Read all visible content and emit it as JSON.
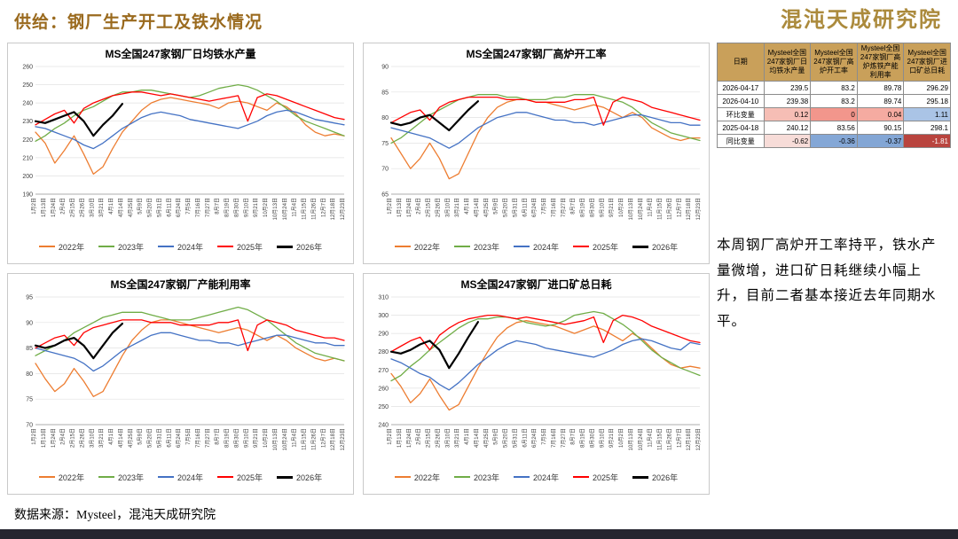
{
  "header": {
    "title": "供给：钢厂生产开工及铁水情况",
    "logo": "混沌天成研究院"
  },
  "footer": {
    "source": "数据来源：Mysteel，混沌天成研究院"
  },
  "note": "本周钢厂高炉开工率持平，铁水产量微增，进口矿日耗继续小幅上升，目前二者基本接近去年同期水平。",
  "colors": {
    "accent": "#9a6a1e",
    "table_header_bg": "#c9a05a",
    "bottom_bar": "#25252f"
  },
  "table": {
    "columns": [
      "日期",
      "Mysteel全国247家钢厂日均铁水产量",
      "Mysteel全国247家钢厂高炉开工率",
      "Mysteel全国247家钢厂高炉炼铁产能利用率",
      "Mysteel全国247家钢厂进口矿总日耗"
    ],
    "rows": [
      {
        "cells": [
          {
            "text": "2026-04-17"
          },
          {
            "text": "239.5"
          },
          {
            "text": "83.2"
          },
          {
            "text": "89.78"
          },
          {
            "text": "296.29"
          }
        ]
      },
      {
        "cells": [
          {
            "text": "2026-04-10"
          },
          {
            "text": "239.38"
          },
          {
            "text": "83.2"
          },
          {
            "text": "89.74"
          },
          {
            "text": "295.18"
          }
        ]
      },
      {
        "cells": [
          {
            "text": "环比变量"
          },
          {
            "text": "0.12",
            "bg": "#f6beb5"
          },
          {
            "text": "0",
            "bg": "#f2968c"
          },
          {
            "text": "0.04",
            "bg": "#f5aba1"
          },
          {
            "text": "1.11",
            "bg": "#aac4e6"
          }
        ]
      },
      {
        "cells": [
          {
            "text": "2025-04-18"
          },
          {
            "text": "240.12"
          },
          {
            "text": "83.56"
          },
          {
            "text": "90.15"
          },
          {
            "text": "298.1"
          }
        ]
      },
      {
        "cells": [
          {
            "text": "同比变量"
          },
          {
            "text": "-0.62",
            "bg": "#f7dcd8"
          },
          {
            "text": "-0.36",
            "bg": "#84a7d6"
          },
          {
            "text": "-0.37",
            "bg": "#83a6d5"
          },
          {
            "text": "-1.81",
            "bg": "#b9443e",
            "fg": "#ffffff"
          }
        ]
      }
    ]
  },
  "chart_data": [
    {
      "type": "line",
      "title": "MS全国247家钢厂日均铁水产量",
      "ylim": [
        190,
        260
      ],
      "ytick_step": 10,
      "grid": true,
      "legend_position": "bottom",
      "categories": [
        "1月2日",
        "1月13日",
        "1月24日",
        "2月4日",
        "2月15日",
        "2月26日",
        "3月10日",
        "3月21日",
        "4月1日",
        "4月14日",
        "4月25日",
        "5月9日",
        "5月20日",
        "5月31日",
        "6月11日",
        "6月24日",
        "7月5日",
        "7月16日",
        "7月27日",
        "8月7日",
        "8月19日",
        "8月30日",
        "9月10日",
        "9月21日",
        "10月2日",
        "10月13日",
        "10月24日",
        "11月4日",
        "11月15日",
        "11月26日",
        "12月7日",
        "12月18日",
        "12月23日"
      ],
      "series": [
        {
          "name": "2022年",
          "color": "#ED7D31",
          "width": 1.3,
          "values": [
            224,
            218,
            207,
            214,
            222,
            212,
            201,
            205,
            215,
            224,
            230,
            236,
            240,
            242,
            243,
            242,
            241,
            240,
            239,
            237,
            240,
            241,
            240,
            238,
            236,
            240,
            238,
            234,
            228,
            224,
            222,
            223,
            222
          ]
        },
        {
          "name": "2023年",
          "color": "#70AD47",
          "width": 1.3,
          "values": [
            219,
            222,
            226,
            229,
            233,
            236,
            238,
            241,
            244,
            246,
            246,
            247,
            247,
            246,
            245,
            244,
            243,
            244,
            246,
            248,
            249,
            250,
            249,
            247,
            244,
            241,
            237,
            233,
            230,
            228,
            226,
            224,
            222
          ]
        },
        {
          "name": "2024年",
          "color": "#4472C4",
          "width": 1.3,
          "values": [
            227,
            226,
            224,
            222,
            220,
            217,
            215,
            218,
            222,
            226,
            229,
            232,
            234,
            235,
            234,
            233,
            231,
            230,
            229,
            228,
            227,
            226,
            228,
            230,
            233,
            235,
            236,
            235,
            233,
            231,
            230,
            229,
            228
          ]
        },
        {
          "name": "2025年",
          "color": "#FF0000",
          "width": 1.3,
          "values": [
            228,
            231,
            234,
            236,
            229,
            237,
            240,
            242,
            244,
            245,
            246,
            246,
            245,
            244,
            245,
            244,
            243,
            242,
            241,
            242,
            243,
            244,
            230,
            243,
            245,
            244,
            242,
            240,
            238,
            236,
            234,
            232,
            231
          ]
        },
        {
          "name": "2026年",
          "color": "#000000",
          "width": 2.2,
          "values": [
            230,
            229,
            231,
            233,
            235,
            230,
            222,
            228,
            233,
            239.5,
            null,
            null,
            null,
            null,
            null,
            null,
            null,
            null,
            null,
            null,
            null,
            null,
            null,
            null,
            null,
            null,
            null,
            null,
            null,
            null,
            null,
            null,
            null
          ]
        }
      ]
    },
    {
      "type": "line",
      "title": "MS全国247家钢厂高炉开工率",
      "ylim": [
        65,
        90
      ],
      "ytick_step": 5,
      "grid": true,
      "legend_position": "bottom",
      "categories": [
        "1月2日",
        "1月13日",
        "1月24日",
        "2月4日",
        "2月15日",
        "2月26日",
        "3月10日",
        "3月21日",
        "4月1日",
        "4月14日",
        "4月25日",
        "5月9日",
        "5月20日",
        "5月31日",
        "6月11日",
        "6月24日",
        "7月5日",
        "7月16日",
        "7月27日",
        "8月7日",
        "8月19日",
        "8月30日",
        "9月10日",
        "9月21日",
        "10月2日",
        "10月13日",
        "10月24日",
        "11月4日",
        "11月15日",
        "11月26日",
        "12月7日",
        "12月18日",
        "12月23日"
      ],
      "series": [
        {
          "name": "2022年",
          "color": "#ED7D31",
          "width": 1.3,
          "values": [
            76,
            73,
            70,
            72,
            75,
            72,
            68,
            69,
            73,
            77,
            80,
            82,
            83,
            83.5,
            83.5,
            83,
            83,
            82.5,
            82,
            81.5,
            82,
            82.5,
            82,
            81,
            80,
            81,
            80,
            78,
            77,
            76,
            75.5,
            76,
            76
          ]
        },
        {
          "name": "2023年",
          "color": "#70AD47",
          "width": 1.3,
          "values": [
            75,
            76,
            77.5,
            79,
            80.5,
            81.5,
            82.5,
            83.5,
            84,
            84.5,
            84.5,
            84.5,
            84,
            84,
            83.5,
            83.5,
            83.5,
            84,
            84,
            84.5,
            84.5,
            84.5,
            84,
            83.5,
            83,
            82,
            80.5,
            79,
            78,
            77,
            76.5,
            76,
            75.5
          ]
        },
        {
          "name": "2024年",
          "color": "#4472C4",
          "width": 1.3,
          "values": [
            78,
            77.5,
            77,
            76.5,
            76,
            75,
            74,
            75,
            76.5,
            78,
            79,
            80,
            80.5,
            81,
            81,
            80.5,
            80,
            79.5,
            79.5,
            79,
            79,
            78.5,
            79,
            79.5,
            80,
            80.5,
            80.5,
            80,
            79.5,
            79,
            79,
            78.5,
            78.5
          ]
        },
        {
          "name": "2025年",
          "color": "#FF0000",
          "width": 1.3,
          "values": [
            79,
            80,
            81,
            81.5,
            79.5,
            82,
            83,
            83.5,
            84,
            84,
            84,
            84,
            83.5,
            83.5,
            83.5,
            83,
            83,
            83,
            83,
            83.5,
            83.5,
            84,
            78.5,
            83,
            84,
            83.5,
            83,
            82,
            81.5,
            81,
            80.5,
            80,
            79.5
          ]
        },
        {
          "name": "2026年",
          "color": "#000000",
          "width": 2.2,
          "values": [
            79,
            78.5,
            79,
            80,
            80.5,
            79,
            77.5,
            79.5,
            81.5,
            83.2,
            null,
            null,
            null,
            null,
            null,
            null,
            null,
            null,
            null,
            null,
            null,
            null,
            null,
            null,
            null,
            null,
            null,
            null,
            null,
            null,
            null,
            null,
            null
          ]
        }
      ]
    },
    {
      "type": "line",
      "title": "MS全国247家钢厂产能利用率",
      "ylim": [
        70,
        95
      ],
      "ytick_step": 5,
      "grid": true,
      "legend_position": "bottom",
      "categories": [
        "1月2日",
        "1月13日",
        "1月24日",
        "2月4日",
        "2月15日",
        "2月26日",
        "3月10日",
        "3月21日",
        "4月1日",
        "4月14日",
        "4月25日",
        "5月9日",
        "5月20日",
        "5月31日",
        "6月11日",
        "6月24日",
        "7月5日",
        "7月16日",
        "7月27日",
        "8月7日",
        "8月19日",
        "8月30日",
        "9月10日",
        "9月21日",
        "10月2日",
        "10月13日",
        "10月24日",
        "11月4日",
        "11月15日",
        "11月26日",
        "12月7日",
        "12月18日",
        "12月23日"
      ],
      "series": [
        {
          "name": "2022年",
          "color": "#ED7D31",
          "width": 1.3,
          "values": [
            82,
            79,
            76.5,
            78,
            81,
            78.5,
            75.5,
            76.5,
            80,
            83.5,
            86.5,
            88.5,
            90,
            90.5,
            90.5,
            90,
            89.5,
            89,
            88.5,
            88,
            88.5,
            89,
            88.5,
            87.5,
            86.5,
            87.5,
            86.5,
            85,
            84,
            83,
            82.5,
            83,
            82.5
          ]
        },
        {
          "name": "2023年",
          "color": "#70AD47",
          "width": 1.3,
          "values": [
            83.5,
            84.5,
            85.5,
            86.5,
            88,
            89,
            90,
            91,
            91.5,
            92,
            92,
            92,
            91.5,
            91,
            90.5,
            90.5,
            90.5,
            91,
            91.5,
            92,
            92.5,
            93,
            92.5,
            91.5,
            90.5,
            89,
            87.5,
            86,
            85,
            84,
            83.5,
            83,
            82.5
          ]
        },
        {
          "name": "2024年",
          "color": "#4472C4",
          "width": 1.3,
          "values": [
            85,
            84.5,
            84,
            83.5,
            83,
            82,
            80.5,
            81.5,
            83,
            84.5,
            85.5,
            86.5,
            87.5,
            88,
            88,
            87.5,
            87,
            86.5,
            86.5,
            86,
            86,
            85.5,
            86,
            86.5,
            87,
            87.5,
            87.5,
            87,
            86.5,
            86,
            86,
            85.5,
            85.5
          ]
        },
        {
          "name": "2025年",
          "color": "#FF0000",
          "width": 1.3,
          "values": [
            85,
            86,
            87,
            87.5,
            85.5,
            88,
            89,
            89.5,
            90,
            90.5,
            90.5,
            90.5,
            90,
            90,
            90,
            89.5,
            89.5,
            89.5,
            89.5,
            90,
            90,
            90.5,
            84.5,
            89.5,
            90.5,
            90,
            89.5,
            88.5,
            88,
            87.5,
            87,
            87,
            86.5
          ]
        },
        {
          "name": "2026年",
          "color": "#000000",
          "width": 2.2,
          "values": [
            85.5,
            85,
            85.5,
            86.5,
            87,
            85.5,
            83,
            85.5,
            88,
            89.78,
            null,
            null,
            null,
            null,
            null,
            null,
            null,
            null,
            null,
            null,
            null,
            null,
            null,
            null,
            null,
            null,
            null,
            null,
            null,
            null,
            null,
            null,
            null
          ]
        }
      ]
    },
    {
      "type": "line",
      "title": "MS全国247家钢厂进口矿总日耗",
      "ylim": [
        240,
        310
      ],
      "ytick_step": 10,
      "grid": true,
      "legend_position": "bottom",
      "categories": [
        "1月2日",
        "1月13日",
        "1月24日",
        "2月4日",
        "2月15日",
        "2月26日",
        "3月10日",
        "3月21日",
        "4月1日",
        "4月14日",
        "4月25日",
        "5月9日",
        "5月20日",
        "5月31日",
        "6月11日",
        "6月24日",
        "7月5日",
        "7月16日",
        "7月27日",
        "8月7日",
        "8月19日",
        "8月30日",
        "9月10日",
        "9月21日",
        "10月2日",
        "10月13日",
        "10月24日",
        "11月4日",
        "11月15日",
        "11月26日",
        "12月7日",
        "12月18日",
        "12月23日"
      ],
      "series": [
        {
          "name": "2022年",
          "color": "#ED7D31",
          "width": 1.3,
          "values": [
            268,
            261,
            252,
            257,
            265,
            256,
            248,
            251,
            261,
            271,
            280,
            288,
            293,
            296,
            297,
            296,
            295,
            294,
            292,
            290,
            292,
            294,
            292,
            289,
            286,
            290,
            287,
            282,
            277,
            273,
            271,
            272,
            271
          ]
        },
        {
          "name": "2023年",
          "color": "#70AD47",
          "width": 1.3,
          "values": [
            264,
            267,
            272,
            276,
            281,
            285,
            289,
            293,
            296,
            298,
            298,
            299,
            299,
            298,
            296,
            295,
            294,
            295,
            297,
            300,
            301,
            302,
            301,
            298,
            295,
            291,
            286,
            281,
            277,
            274,
            271,
            269,
            267
          ]
        },
        {
          "name": "2024年",
          "color": "#4472C4",
          "width": 1.3,
          "values": [
            276,
            274,
            271,
            268,
            266,
            262,
            259,
            263,
            268,
            273,
            277,
            281,
            284,
            286,
            285,
            284,
            282,
            281,
            280,
            279,
            278,
            277,
            279,
            281,
            284,
            286,
            287,
            286,
            284,
            282,
            281,
            285,
            284
          ]
        },
        {
          "name": "2025年",
          "color": "#FF0000",
          "width": 1.3,
          "values": [
            280,
            283,
            286,
            288,
            281,
            289,
            293,
            296,
            298,
            299,
            300,
            300,
            299,
            298,
            299,
            298,
            297,
            296,
            295,
            296,
            297,
            299,
            285,
            297,
            300,
            299,
            297,
            294,
            292,
            290,
            288,
            286,
            285
          ]
        },
        {
          "name": "2026年",
          "color": "#000000",
          "width": 2.2,
          "values": [
            280,
            279,
            281,
            284,
            286,
            281,
            271,
            279,
            288,
            296.29,
            null,
            null,
            null,
            null,
            null,
            null,
            null,
            null,
            null,
            null,
            null,
            null,
            null,
            null,
            null,
            null,
            null,
            null,
            null,
            null,
            null,
            null,
            null
          ]
        }
      ]
    }
  ]
}
